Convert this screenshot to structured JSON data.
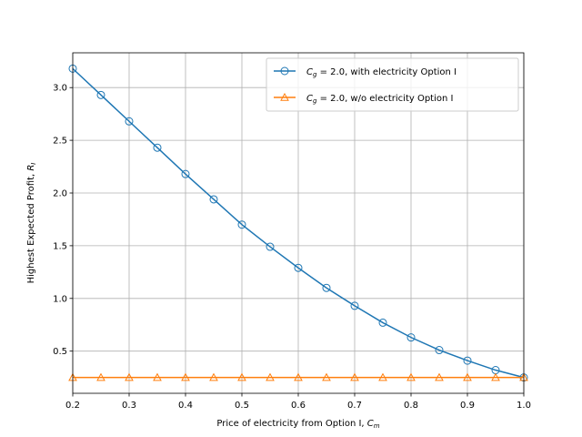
{
  "chart_data": {
    "type": "line",
    "title": "",
    "xlabel": "Price of electricity from Option I, ",
    "xlabel_math": "C",
    "xlabel_sub": "m",
    "ylabel": "Highest Expected Profit, ",
    "ylabel_math": "R",
    "ylabel_sub": "I",
    "xlim": [
      0.2,
      1.0
    ],
    "ylim": [
      0.1,
      3.33
    ],
    "xticks": [
      0.2,
      0.3,
      0.4,
      0.5,
      0.6,
      0.7,
      0.8,
      0.9,
      1.0
    ],
    "xtick_labels": [
      "0.2",
      "0.3",
      "0.4",
      "0.5",
      "0.6",
      "0.7",
      "0.8",
      "0.9",
      "1.0"
    ],
    "yticks": [
      0.5,
      1.0,
      1.5,
      2.0,
      2.5,
      3.0
    ],
    "ytick_labels": [
      "0.5",
      "1.0",
      "1.5",
      "2.0",
      "2.5",
      "3.0"
    ],
    "grid": true,
    "legend_position": "top-right",
    "x": [
      0.2,
      0.25,
      0.3,
      0.35,
      0.4,
      0.45,
      0.5,
      0.55,
      0.6,
      0.65,
      0.7,
      0.75,
      0.8,
      0.85,
      0.9,
      0.95,
      1.0
    ],
    "series": [
      {
        "name": "C_g = 2.0, with electricity Option I",
        "legend_math": "C",
        "legend_sub": "g",
        "legend_rest": " = 2.0, with electricity Option I",
        "color": "#1f77b4",
        "marker": "circle",
        "values": [
          3.18,
          2.93,
          2.68,
          2.43,
          2.18,
          1.94,
          1.7,
          1.49,
          1.29,
          1.1,
          0.93,
          0.77,
          0.63,
          0.51,
          0.41,
          0.32,
          0.25
        ]
      },
      {
        "name": "C_g = 2.0, w/o electricity Option I",
        "legend_math": "C",
        "legend_sub": "g",
        "legend_rest": " = 2.0, w/o electricity Option I",
        "color": "#ff7f0e",
        "marker": "triangle",
        "values": [
          0.25,
          0.25,
          0.25,
          0.25,
          0.25,
          0.25,
          0.25,
          0.25,
          0.25,
          0.25,
          0.25,
          0.25,
          0.25,
          0.25,
          0.25,
          0.25,
          0.25
        ]
      }
    ]
  }
}
